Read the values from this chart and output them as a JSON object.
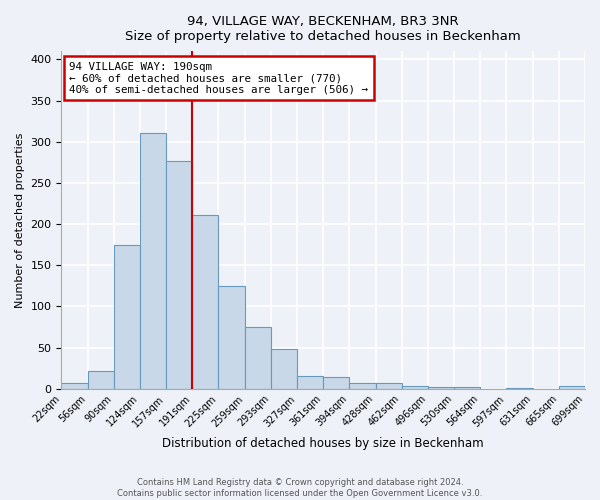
{
  "title": "94, VILLAGE WAY, BECKENHAM, BR3 3NR",
  "subtitle": "Size of property relative to detached houses in Beckenham",
  "xlabel": "Distribution of detached houses by size in Beckenham",
  "ylabel": "Number of detached properties",
  "bin_labels": [
    "22sqm",
    "56sqm",
    "90sqm",
    "124sqm",
    "157sqm",
    "191sqm",
    "225sqm",
    "259sqm",
    "293sqm",
    "327sqm",
    "361sqm",
    "394sqm",
    "428sqm",
    "462sqm",
    "496sqm",
    "530sqm",
    "564sqm",
    "597sqm",
    "631sqm",
    "665sqm",
    "699sqm"
  ],
  "bar_heights": [
    7,
    22,
    175,
    310,
    277,
    211,
    125,
    75,
    48,
    15,
    14,
    7,
    7,
    3,
    2,
    2,
    0,
    1,
    0,
    3
  ],
  "bar_color": "#c8d8e8",
  "bar_edge_color": "#6699bb",
  "vline_x_index": 5,
  "vline_color": "#cc0000",
  "annotation_title": "94 VILLAGE WAY: 190sqm",
  "annotation_line1": "← 60% of detached houses are smaller (770)",
  "annotation_line2": "40% of semi-detached houses are larger (506) →",
  "annotation_box_edgecolor": "#cc0000",
  "ylim": [
    0,
    410
  ],
  "yticks": [
    0,
    50,
    100,
    150,
    200,
    250,
    300,
    350,
    400
  ],
  "footer1": "Contains HM Land Registry data © Crown copyright and database right 2024.",
  "footer2": "Contains public sector information licensed under the Open Government Licence v3.0.",
  "bg_color": "#eef2f8"
}
